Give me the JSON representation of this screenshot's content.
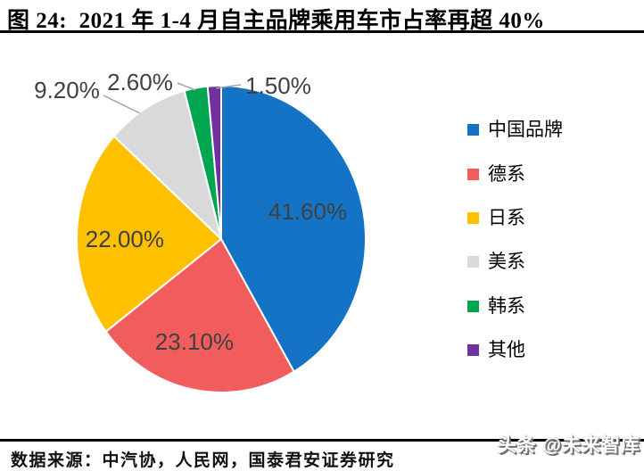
{
  "header": {
    "title": "图 24:  2021 年 1-4 月自主品牌乘用车市占率再超 40%"
  },
  "chart_data": {
    "type": "pie",
    "title": "2021 年 1-4 月自主品牌乘用车市占率再超 40%",
    "categories": [
      "中国品牌",
      "德系",
      "日系",
      "美系",
      "韩系",
      "其他"
    ],
    "values": [
      41.6,
      23.1,
      22.0,
      9.2,
      2.6,
      1.5
    ],
    "value_labels": [
      "41.60%",
      "23.10%",
      "22.00%",
      "9.20%",
      "2.60%",
      "1.50%"
    ],
    "colors": [
      "#1473c4",
      "#f15d5d",
      "#ffc000",
      "#d9d9d9",
      "#00a550",
      "#7030a0"
    ],
    "label_color": "#404040",
    "leader_line_color": "#a6a6a6",
    "slice_border_color": "#ffffff",
    "units": "%",
    "start_angle_deg": 0,
    "direction": "clockwise",
    "legend_position": "right",
    "grid": false
  },
  "footer": {
    "source": "数据来源：中汽协，人民网，国泰君安证券研究",
    "watermark": "头条 @未来智库"
  }
}
